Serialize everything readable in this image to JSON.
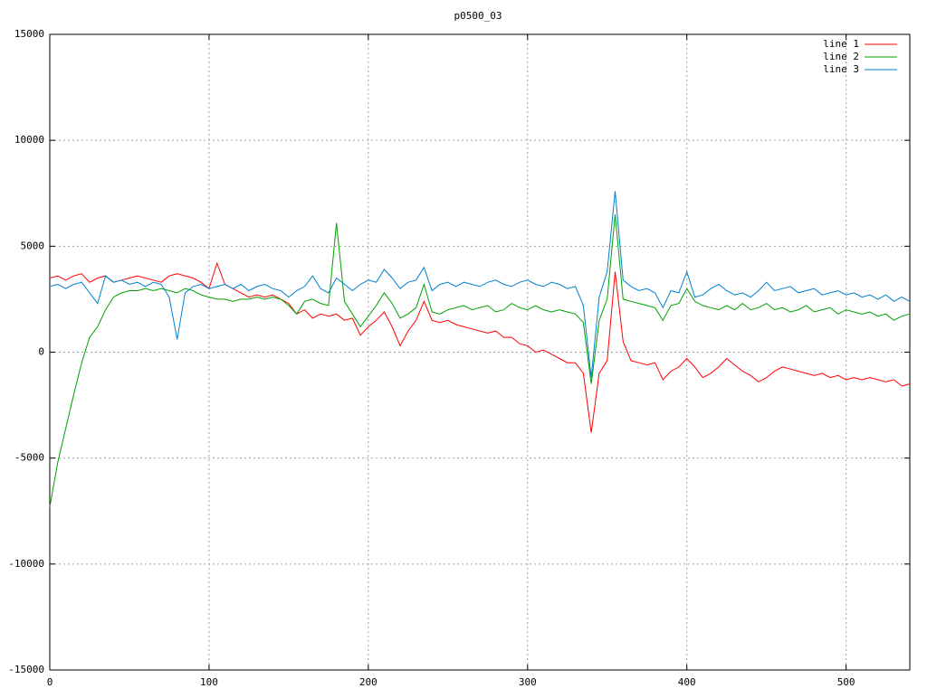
{
  "chart_data": {
    "type": "line",
    "title": "p0500_03",
    "x": [
      0,
      5,
      10,
      15,
      20,
      25,
      30,
      35,
      40,
      45,
      50,
      55,
      60,
      65,
      70,
      75,
      80,
      85,
      90,
      95,
      100,
      105,
      110,
      115,
      120,
      125,
      130,
      135,
      140,
      145,
      150,
      155,
      160,
      165,
      170,
      175,
      180,
      185,
      190,
      195,
      200,
      205,
      210,
      215,
      220,
      225,
      230,
      235,
      240,
      245,
      250,
      255,
      260,
      265,
      270,
      275,
      280,
      285,
      290,
      295,
      300,
      305,
      310,
      315,
      320,
      325,
      330,
      335,
      340,
      345,
      350,
      355,
      360,
      365,
      370,
      375,
      380,
      385,
      390,
      395,
      400,
      405,
      410,
      415,
      420,
      425,
      430,
      435,
      440,
      445,
      450,
      455,
      460,
      465,
      470,
      475,
      480,
      485,
      490,
      495,
      500,
      505,
      510,
      515,
      520,
      525,
      530,
      535,
      540
    ],
    "series": [
      {
        "name": "line 1",
        "color": "#ff0000",
        "values": [
          3500,
          3600,
          3400,
          3600,
          3700,
          3300,
          3500,
          3600,
          3300,
          3400,
          3500,
          3600,
          3500,
          3400,
          3300,
          3600,
          3700,
          3600,
          3500,
          3300,
          3000,
          4200,
          3200,
          3000,
          2800,
          2600,
          2700,
          2600,
          2700,
          2500,
          2300,
          1800,
          2000,
          1600,
          1800,
          1700,
          1800,
          1500,
          1600,
          800,
          1200,
          1500,
          1900,
          1200,
          300,
          1000,
          1500,
          2400,
          1500,
          1400,
          1500,
          1300,
          1200,
          1100,
          1000,
          900,
          1000,
          700,
          700,
          400,
          300,
          0,
          100,
          -100,
          -300,
          -500,
          -500,
          -1000,
          -3800,
          -1000,
          -400,
          3800,
          500,
          -400,
          -500,
          -600,
          -500,
          -1300,
          -900,
          -700,
          -300,
          -700,
          -1200,
          -1000,
          -700,
          -300,
          -600,
          -900,
          -1100,
          -1400,
          -1200,
          -900,
          -700,
          -800,
          -900,
          -1000,
          -1100,
          -1000,
          -1200,
          -1100,
          -1300,
          -1200,
          -1300,
          -1200,
          -1300,
          -1400,
          -1300,
          -1600,
          -1500
        ]
      },
      {
        "name": "line 2",
        "color": "#00a000",
        "values": [
          -7300,
          -5200,
          -3600,
          -2000,
          -500,
          700,
          1200,
          2000,
          2600,
          2800,
          2900,
          2900,
          3000,
          2900,
          3000,
          2900,
          2800,
          3000,
          2900,
          2700,
          2600,
          2500,
          2500,
          2400,
          2500,
          2500,
          2600,
          2500,
          2600,
          2500,
          2200,
          1800,
          2400,
          2500,
          2300,
          2200,
          6100,
          2400,
          1800,
          1200,
          1700,
          2200,
          2800,
          2300,
          1600,
          1800,
          2100,
          3200,
          1900,
          1800,
          2000,
          2100,
          2200,
          2000,
          2100,
          2200,
          1900,
          2000,
          2300,
          2100,
          2000,
          2200,
          2000,
          1900,
          2000,
          1900,
          1800,
          1400,
          -1500,
          1500,
          2500,
          6500,
          2500,
          2400,
          2300,
          2200,
          2100,
          1500,
          2200,
          2300,
          3000,
          2400,
          2200,
          2100,
          2000,
          2200,
          2000,
          2300,
          2000,
          2100,
          2300,
          2000,
          2100,
          1900,
          2000,
          2200,
          1900,
          2000,
          2100,
          1800,
          2000,
          1900,
          1800,
          1900,
          1700,
          1800,
          1500,
          1700,
          1800
        ]
      },
      {
        "name": "line 3",
        "color": "#0080d0",
        "values": [
          3100,
          3200,
          3000,
          3200,
          3300,
          2800,
          2300,
          3600,
          3300,
          3400,
          3200,
          3300,
          3100,
          3300,
          3200,
          2600,
          600,
          2800,
          3100,
          3200,
          3000,
          3100,
          3200,
          3000,
          3200,
          2900,
          3100,
          3200,
          3000,
          2900,
          2600,
          2900,
          3100,
          3600,
          3000,
          2800,
          3500,
          3200,
          2900,
          3200,
          3400,
          3300,
          3900,
          3500,
          3000,
          3300,
          3400,
          4000,
          2900,
          3200,
          3300,
          3100,
          3300,
          3200,
          3100,
          3300,
          3400,
          3200,
          3100,
          3300,
          3400,
          3200,
          3100,
          3300,
          3200,
          3000,
          3100,
          2200,
          -1200,
          2600,
          3800,
          7600,
          3400,
          3100,
          2900,
          3000,
          2800,
          2100,
          2900,
          2800,
          3800,
          2600,
          2700,
          3000,
          3200,
          2900,
          2700,
          2800,
          2600,
          2900,
          3300,
          2900,
          3000,
          3100,
          2800,
          2900,
          3000,
          2700,
          2800,
          2900,
          2700,
          2800,
          2600,
          2700,
          2500,
          2700,
          2400,
          2600,
          2400
        ]
      }
    ],
    "xlim": [
      0,
      540
    ],
    "ylim": [
      -15000,
      15000
    ],
    "xticks": [
      0,
      100,
      200,
      300,
      400,
      500
    ],
    "yticks": [
      -15000,
      -10000,
      -5000,
      0,
      5000,
      10000,
      15000
    ],
    "grid": true,
    "legend": "upper right"
  }
}
